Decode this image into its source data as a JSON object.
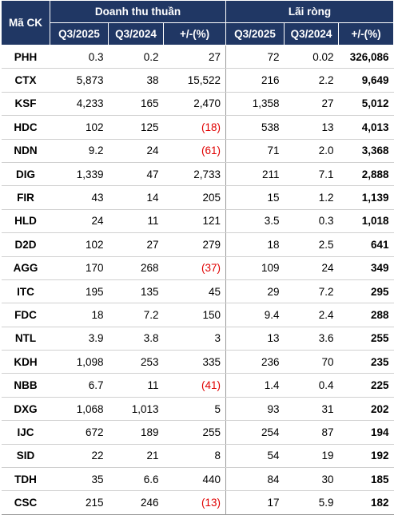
{
  "header": {
    "code_label": "Mã CK",
    "group1": "Doanh thu thuần",
    "group2": "Lãi ròng",
    "sub": [
      "Q3/2025",
      "Q3/2024",
      "+/-(%)",
      "Q3/2025",
      "Q3/2024",
      "+/-(%)"
    ]
  },
  "colors": {
    "header_bg": "#203764",
    "header_text": "#ffffff",
    "negative": "#e00000"
  },
  "rows": [
    {
      "code": "PHH",
      "rev25": "0.3",
      "rev24": "0.2",
      "revchg": "27",
      "ni25": "72",
      "ni24": "0.02",
      "nichg": "326,086"
    },
    {
      "code": "CTX",
      "rev25": "5,873",
      "rev24": "38",
      "revchg": "15,522",
      "ni25": "216",
      "ni24": "2.2",
      "nichg": "9,649"
    },
    {
      "code": "KSF",
      "rev25": "4,233",
      "rev24": "165",
      "revchg": "2,470",
      "ni25": "1,358",
      "ni24": "27",
      "nichg": "5,012"
    },
    {
      "code": "HDC",
      "rev25": "102",
      "rev24": "125",
      "revchg": "(18)",
      "ni25": "538",
      "ni24": "13",
      "nichg": "4,013"
    },
    {
      "code": "NDN",
      "rev25": "9.2",
      "rev24": "24",
      "revchg": "(61)",
      "ni25": "71",
      "ni24": "2.0",
      "nichg": "3,368"
    },
    {
      "code": "DIG",
      "rev25": "1,339",
      "rev24": "47",
      "revchg": "2,733",
      "ni25": "211",
      "ni24": "7.1",
      "nichg": "2,888"
    },
    {
      "code": "FIR",
      "rev25": "43",
      "rev24": "14",
      "revchg": "205",
      "ni25": "15",
      "ni24": "1.2",
      "nichg": "1,139"
    },
    {
      "code": "HLD",
      "rev25": "24",
      "rev24": "11",
      "revchg": "121",
      "ni25": "3.5",
      "ni24": "0.3",
      "nichg": "1,018"
    },
    {
      "code": "D2D",
      "rev25": "102",
      "rev24": "27",
      "revchg": "279",
      "ni25": "18",
      "ni24": "2.5",
      "nichg": "641"
    },
    {
      "code": "AGG",
      "rev25": "170",
      "rev24": "268",
      "revchg": "(37)",
      "ni25": "109",
      "ni24": "24",
      "nichg": "349"
    },
    {
      "code": "ITC",
      "rev25": "195",
      "rev24": "135",
      "revchg": "45",
      "ni25": "29",
      "ni24": "7.2",
      "nichg": "295"
    },
    {
      "code": "FDC",
      "rev25": "18",
      "rev24": "7.2",
      "revchg": "150",
      "ni25": "9.4",
      "ni24": "2.4",
      "nichg": "288"
    },
    {
      "code": "NTL",
      "rev25": "3.9",
      "rev24": "3.8",
      "revchg": "3",
      "ni25": "13",
      "ni24": "3.6",
      "nichg": "255"
    },
    {
      "code": "KDH",
      "rev25": "1,098",
      "rev24": "253",
      "revchg": "335",
      "ni25": "236",
      "ni24": "70",
      "nichg": "235"
    },
    {
      "code": "NBB",
      "rev25": "6.7",
      "rev24": "11",
      "revchg": "(41)",
      "ni25": "1.4",
      "ni24": "0.4",
      "nichg": "225"
    },
    {
      "code": "DXG",
      "rev25": "1,068",
      "rev24": "1,013",
      "revchg": "5",
      "ni25": "93",
      "ni24": "31",
      "nichg": "202"
    },
    {
      "code": "IJC",
      "rev25": "672",
      "rev24": "189",
      "revchg": "255",
      "ni25": "254",
      "ni24": "87",
      "nichg": "194"
    },
    {
      "code": "SID",
      "rev25": "22",
      "rev24": "21",
      "revchg": "8",
      "ni25": "54",
      "ni24": "19",
      "nichg": "192"
    },
    {
      "code": "TDH",
      "rev25": "35",
      "rev24": "6.6",
      "revchg": "440",
      "ni25": "84",
      "ni24": "30",
      "nichg": "185"
    },
    {
      "code": "CSC",
      "rev25": "215",
      "rev24": "246",
      "revchg": "(13)",
      "ni25": "17",
      "ni24": "5.9",
      "nichg": "182"
    }
  ]
}
